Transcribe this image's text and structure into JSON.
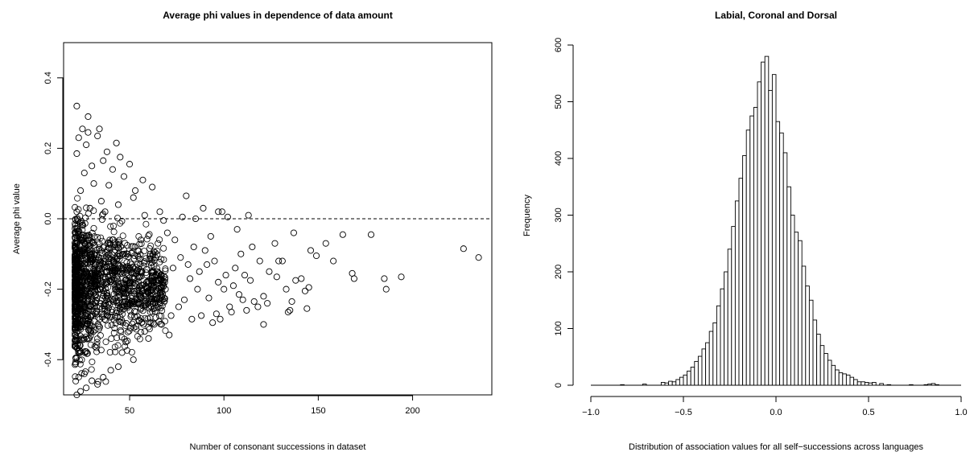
{
  "chart_data": [
    {
      "type": "scatter",
      "title": "Average phi values in dependence of data amount",
      "xlabel": "Number of consonant successions in dataset",
      "ylabel": "Average phi value",
      "xlim": [
        15,
        242
      ],
      "ylim": [
        -0.5,
        0.5
      ],
      "xticks": [
        "50",
        "100",
        "150",
        "200"
      ],
      "yticks": [
        "-0.4",
        "-0.2",
        "0.0",
        "0.2",
        "0.4"
      ],
      "reference_line": {
        "y": 0,
        "style": "dashed"
      },
      "marker": "open-circle",
      "grid": false,
      "series": [
        {
          "points": [
            [
              22,
              0.32
            ],
            [
              28,
              0.29
            ],
            [
              25,
              0.255
            ],
            [
              34,
              0.255
            ],
            [
              28,
              0.245
            ],
            [
              23,
              0.23
            ],
            [
              33,
              0.235
            ],
            [
              43,
              0.215
            ],
            [
              27,
              0.21
            ],
            [
              38,
              0.19
            ],
            [
              22,
              0.185
            ],
            [
              45,
              0.175
            ],
            [
              50,
              0.155
            ],
            [
              36,
              0.165
            ],
            [
              57,
              0.11
            ],
            [
              62,
              0.09
            ],
            [
              53,
              0.08
            ],
            [
              80,
              0.065
            ],
            [
              89,
              0.03
            ],
            [
              97,
              0.02
            ],
            [
              99,
              0.02
            ],
            [
              66,
              0.02
            ],
            [
              68,
              -0.005
            ],
            [
              102,
              0.005
            ],
            [
              113,
              0.01
            ],
            [
              78,
              0.005
            ],
            [
              85,
              0.0
            ],
            [
              30,
              0.15
            ],
            [
              41,
              0.14
            ],
            [
              26,
              0.13
            ],
            [
              47,
              0.12
            ],
            [
              31,
              0.1
            ],
            [
              39,
              0.095
            ],
            [
              24,
              0.08
            ],
            [
              52,
              0.06
            ],
            [
              35,
              0.05
            ],
            [
              44,
              0.04
            ],
            [
              58,
              0.01
            ],
            [
              29,
              0.03
            ],
            [
              37,
              0.02
            ],
            [
              137,
              -0.04
            ],
            [
              127,
              -0.07
            ],
            [
              146,
              -0.09
            ],
            [
              154,
              -0.07
            ],
            [
              163,
              -0.045
            ],
            [
              178,
              -0.045
            ],
            [
              158,
              -0.12
            ],
            [
              149,
              -0.105
            ],
            [
              168,
              -0.155
            ],
            [
              169,
              -0.17
            ],
            [
              185,
              -0.17
            ],
            [
              186,
              -0.2
            ],
            [
              194,
              -0.165
            ],
            [
              227,
              -0.085
            ],
            [
              235,
              -0.11
            ],
            [
              145,
              -0.195
            ],
            [
              133,
              -0.2
            ],
            [
              143,
              -0.205
            ],
            [
              136,
              -0.235
            ],
            [
              141,
              -0.17
            ],
            [
              129,
              -0.12
            ],
            [
              131,
              -0.12
            ],
            [
              124,
              -0.15
            ],
            [
              128,
              -0.165
            ],
            [
              121,
              -0.22
            ],
            [
              123,
              -0.24
            ],
            [
              121,
              -0.3
            ],
            [
              118,
              -0.25
            ],
            [
              116,
              -0.235
            ],
            [
              135,
              -0.26
            ],
            [
              138,
              -0.175
            ],
            [
              134,
              -0.265
            ],
            [
              144,
              -0.255
            ],
            [
              108,
              -0.215
            ],
            [
              110,
              -0.23
            ],
            [
              112,
              -0.26
            ],
            [
              104,
              -0.265
            ],
            [
              98,
              -0.285
            ],
            [
              103,
              -0.25
            ],
            [
              94,
              -0.295
            ],
            [
              96,
              -0.27
            ],
            [
              88,
              -0.275
            ],
            [
              83,
              -0.285
            ],
            [
              92,
              -0.225
            ],
            [
              86,
              -0.2
            ],
            [
              79,
              -0.23
            ],
            [
              76,
              -0.25
            ],
            [
              72,
              -0.275
            ],
            [
              67,
              -0.3
            ],
            [
              71,
              -0.33
            ],
            [
              60,
              -0.34
            ],
            [
              58,
              -0.32
            ],
            [
              63,
              -0.3
            ],
            [
              55,
              -0.29
            ],
            [
              101,
              -0.16
            ],
            [
              106,
              -0.14
            ],
            [
              114,
              -0.175
            ],
            [
              119,
              -0.12
            ],
            [
              109,
              -0.1
            ],
            [
              95,
              -0.12
            ],
            [
              90,
              -0.09
            ],
            [
              84,
              -0.08
            ],
            [
              81,
              -0.13
            ],
            [
              77,
              -0.11
            ],
            [
              74,
              -0.06
            ],
            [
              70,
              -0.04
            ],
            [
              65,
              -0.07
            ],
            [
              61,
              -0.1
            ],
            [
              56,
              -0.06
            ],
            [
              54,
              -0.13
            ],
            [
              59,
              -0.18
            ],
            [
              64,
              -0.16
            ],
            [
              69,
              -0.2
            ],
            [
              73,
              -0.14
            ],
            [
              82,
              -0.17
            ],
            [
              87,
              -0.15
            ],
            [
              91,
              -0.13
            ],
            [
              97,
              -0.18
            ],
            [
              100,
              -0.2
            ],
            [
              105,
              -0.19
            ],
            [
              111,
              -0.16
            ],
            [
              115,
              -0.08
            ],
            [
              107,
              -0.03
            ],
            [
              93,
              -0.05
            ],
            [
              48,
              -0.35
            ],
            [
              46,
              -0.38
            ],
            [
              52,
              -0.4
            ],
            [
              44,
              -0.42
            ],
            [
              40,
              -0.43
            ],
            [
              36,
              -0.45
            ],
            [
              33,
              -0.47
            ],
            [
              30,
              -0.46
            ],
            [
              27,
              -0.48
            ],
            [
              24,
              -0.49
            ],
            [
              22,
              -0.5
            ],
            [
              26,
              -0.44
            ]
          ]
        }
      ]
    },
    {
      "type": "histogram",
      "title": "Labial, Coronal and Dorsal",
      "xlabel": "Distribution of association values for all self−successions across languages",
      "ylabel": "Frequency",
      "xlim": [
        -1.0,
        1.0
      ],
      "ylim": [
        0,
        600
      ],
      "xticks": [
        "−1.0",
        "−0.5",
        "0.0",
        "0.5",
        "1.0"
      ],
      "yticks": [
        "0",
        "100",
        "200",
        "300",
        "400",
        "500",
        "600"
      ],
      "bin_start": -0.84,
      "bin_width": 0.02,
      "counts": [
        1,
        0,
        0,
        0,
        0,
        0,
        2,
        0,
        0,
        0,
        0,
        5,
        4,
        7,
        6,
        10,
        14,
        18,
        25,
        32,
        42,
        51,
        64,
        75,
        95,
        110,
        140,
        170,
        200,
        240,
        280,
        325,
        365,
        405,
        450,
        475,
        490,
        535,
        570,
        580,
        520,
        548,
        465,
        445,
        410,
        350,
        300,
        270,
        255,
        210,
        175,
        150,
        115,
        90,
        70,
        56,
        44,
        35,
        27,
        22,
        20,
        18,
        14,
        10,
        6,
        6,
        5,
        4,
        5,
        0,
        3,
        0,
        1,
        0,
        0,
        0,
        0,
        0,
        1,
        0,
        0,
        0,
        1,
        2,
        3,
        1,
        0,
        0,
        0,
        0,
        0,
        0
      ]
    }
  ]
}
